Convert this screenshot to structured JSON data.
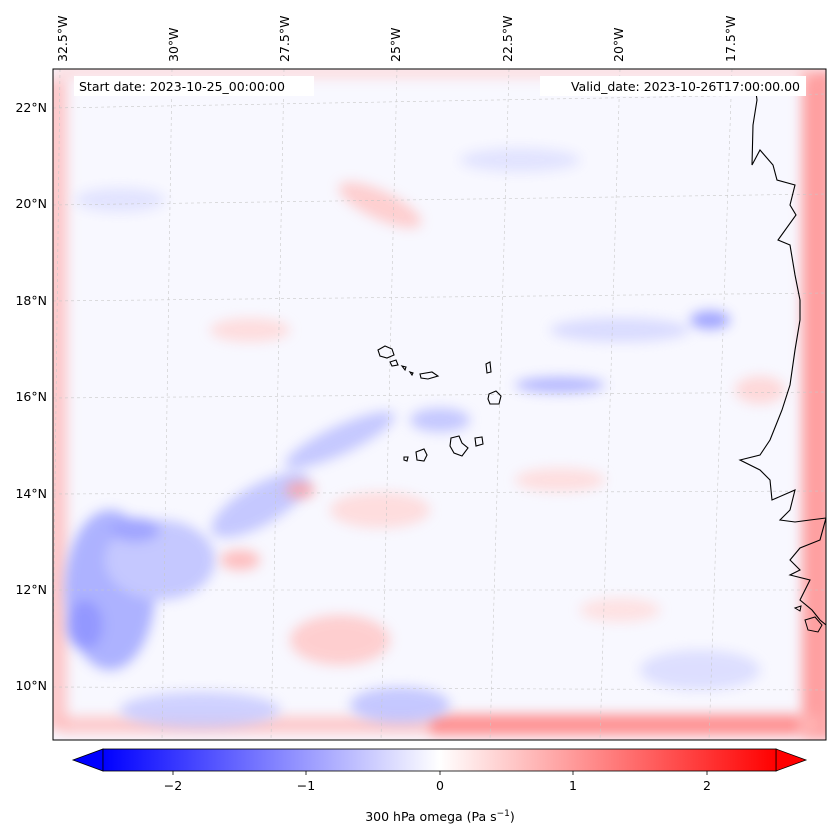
{
  "map": {
    "start_date_label": "Start date: 2023-10-25_00:00:00",
    "valid_date_label": "Valid_date: 2023-10-26T17:00:00.00",
    "lon_labels": [
      "32.5°W",
      "30°W",
      "27.5°W",
      "25°W",
      "22.5°W",
      "20°W",
      "17.5°W"
    ],
    "lat_labels": [
      "22°N",
      "20°N",
      "18°N",
      "16°N",
      "14°N",
      "12°N",
      "10°N"
    ],
    "field": "300 hPa omega",
    "colormap": "bwr",
    "coastline_color": "#000000"
  },
  "colorbar": {
    "label_main": "300 hPa omega (Pa s",
    "label_exp": "−1",
    "label_close": ")",
    "ticks": [
      "−2",
      "−1",
      "0",
      "1",
      "2"
    ],
    "range": [
      -2.7,
      2.7
    ],
    "extend": "both"
  }
}
